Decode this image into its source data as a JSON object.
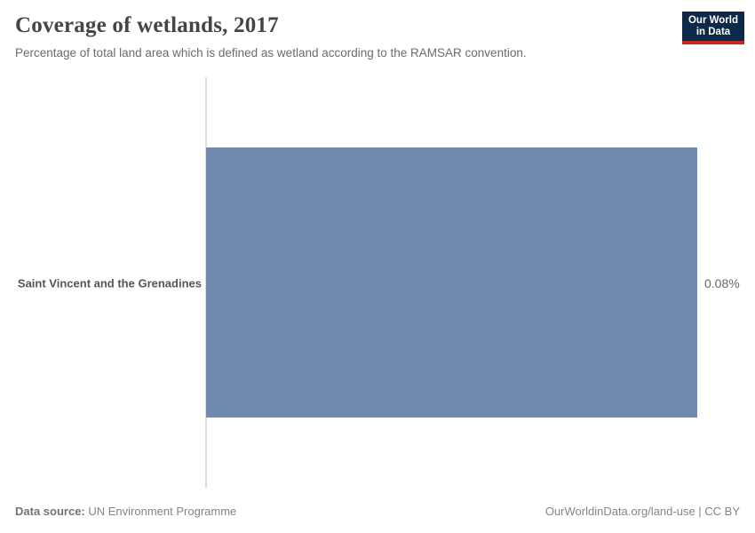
{
  "header": {
    "title": "Coverage of wetlands, 2017",
    "subtitle": "Percentage of total land area which is defined as wetland according to the RAMSAR convention.",
    "logo": {
      "line1": "Our World",
      "line2": "in Data"
    }
  },
  "chart_data": {
    "type": "bar",
    "orientation": "horizontal",
    "title": "Coverage of wetlands, 2017",
    "subtitle": "Percentage of total land area which is defined as wetland according to the RAMSAR convention.",
    "categories": [
      "Saint Vincent and the Grenadines"
    ],
    "values": [
      0.08
    ],
    "value_labels": [
      "0.08%"
    ],
    "unit": "%",
    "xlim": [
      0,
      0.08
    ],
    "grid": false,
    "legend": false,
    "bar_color": "#708aae"
  },
  "colors": {
    "bar": "#708aae",
    "axis_line": "#dcdcdc",
    "logo_navy": "#0d2949",
    "logo_red": "#c52a1e"
  },
  "footer": {
    "source_prefix": "Data source:",
    "source_value": "UN Environment Programme",
    "link_text": "OurWorldinData.org/land-use | CC BY"
  }
}
